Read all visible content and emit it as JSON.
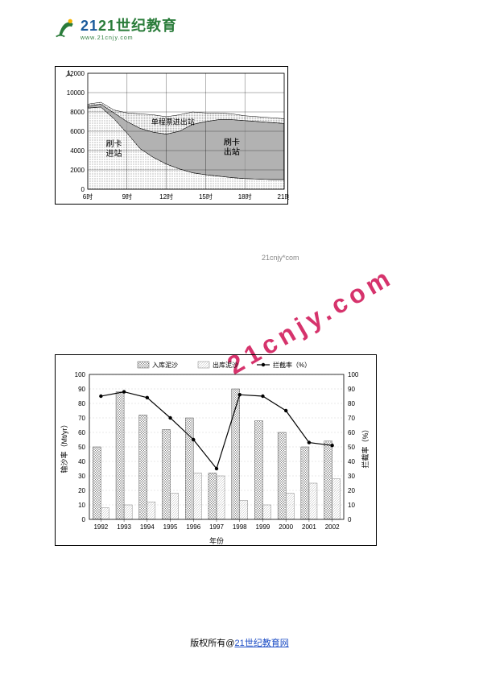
{
  "logo": {
    "text_primary": "21世纪教育",
    "url": "www.21cnjy.com"
  },
  "chart1": {
    "type": "area",
    "title_y": "人",
    "ylim": [
      0,
      12000
    ],
    "ytick_step": 2000,
    "yticks": [
      "0",
      "2000",
      "4000",
      "6000",
      "8000",
      "10000",
      "12000"
    ],
    "xlim": [
      "6时",
      "21时"
    ],
    "xticks": [
      "6时",
      "9时",
      "12时",
      "15时",
      "18时",
      "21时"
    ],
    "regions": [
      {
        "label": "刷卡进站",
        "pattern": "dots",
        "color": "#888888"
      },
      {
        "label": "单程票进出站",
        "pattern": "vertical-lines",
        "color": "#333333"
      },
      {
        "label": "刷卡出站",
        "pattern": "dense-dots",
        "color": "#888888"
      }
    ],
    "series_top": [
      8800,
      9000,
      8200,
      7900,
      7800,
      7700,
      7500,
      7700,
      8000,
      7900,
      7900,
      7800,
      7600,
      7500,
      7400,
      7300
    ],
    "series_mid": [
      8600,
      8800,
      7900,
      7000,
      6300,
      5900,
      5700,
      6000,
      6700,
      7000,
      7200,
      7200,
      7100,
      7000,
      6900,
      6800
    ],
    "series_low": [
      8400,
      8500,
      7300,
      5800,
      4200,
      3300,
      2600,
      2100,
      1700,
      1500,
      1350,
      1200,
      1100,
      1050,
      1000,
      1000
    ],
    "grid_color": "#000000",
    "background_color": "#ffffff",
    "label_fontsize": 10
  },
  "chart2": {
    "type": "bar+line",
    "xlabel": "年份",
    "ylabel_left": "输沙率（Mt/yr）",
    "ylabel_right": "拦截率（%）",
    "xticks": [
      "1992",
      "1993",
      "1994",
      "1995",
      "1996",
      "1997",
      "1998",
      "1999",
      "2000",
      "2001",
      "2002"
    ],
    "ylim_left": [
      0,
      100
    ],
    "ylim_right": [
      0,
      100
    ],
    "ytick_step": 10,
    "grid_color": "#cccccc",
    "legend": [
      {
        "label": "入库泥沙",
        "type": "bar",
        "pattern": "hatch-grid",
        "color": "#666666"
      },
      {
        "label": "出库泥沙",
        "type": "bar",
        "pattern": "hatch-light",
        "color": "#aaaaaa"
      },
      {
        "label": "拦截率（%）",
        "type": "line",
        "marker": "circle",
        "color": "#000000"
      }
    ],
    "bar_in": [
      50,
      88,
      72,
      62,
      70,
      32,
      90,
      68,
      60,
      50,
      54
    ],
    "bar_out": [
      8,
      10,
      12,
      18,
      32,
      30,
      13,
      10,
      18,
      25,
      28
    ],
    "line": [
      85,
      88,
      84,
      70,
      55,
      35,
      86,
      85,
      75,
      53,
      51
    ],
    "bar_width": 0.35,
    "label_fontsize": 10
  },
  "watermark": {
    "text_large": "21cnjy.com",
    "text_small": "21cnjy*com"
  },
  "footer": {
    "prefix": "版权所有@",
    "link_text": "21世纪教育网"
  }
}
